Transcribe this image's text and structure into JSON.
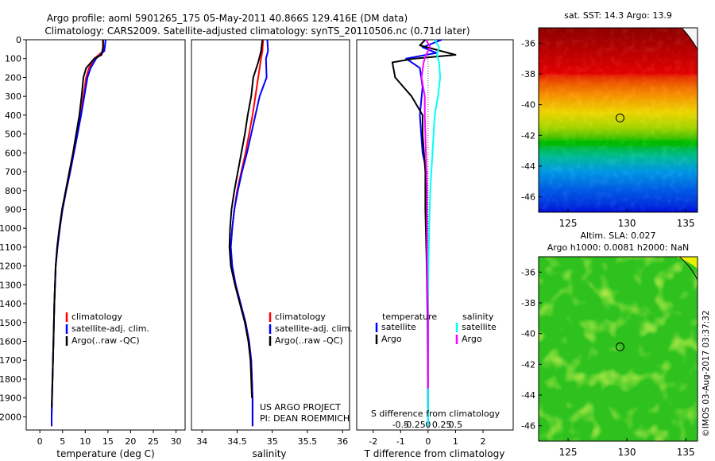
{
  "header": {
    "line1": "Argo profile: aoml 5901265_175 05-May-2011 40.866S 129.416E (DM data)",
    "line2": "Climatology: CARS2009. Satellite-adjusted climatology: synTS_20110506.nc (0.71d later)"
  },
  "footer": {
    "project": "US ARGO PROJECT",
    "pi": "PI: DEAN ROEMMICH",
    "stamp": "©IMOS 03-Aug-2017 03:37:32"
  },
  "maps": {
    "sst": {
      "title": "sat. SST: 14.3 Argo: 13.9"
    },
    "sla": {
      "title1": "Altim. SLA: 0.027",
      "title2": "Argo h1000: 0.0081 h2000: NaN"
    },
    "profile_marker": {
      "lon": 129.416,
      "lat": -40.866
    }
  },
  "colors": {
    "climatology": "#ff0000",
    "satellite": "#0000ff",
    "argo": "#000000",
    "s_satellite": "#00ffff",
    "s_argo": "#ff00ff",
    "frame": "#000000"
  },
  "chart_data": [
    {
      "type": "line",
      "xlabel": "temperature (deg C)",
      "ylabel": "",
      "xlim": [
        -3,
        32
      ],
      "ylim": [
        2070,
        0
      ],
      "xticks": [
        "0",
        "5",
        "10",
        "15",
        "20",
        "25",
        "30"
      ],
      "xtick_values": [
        0,
        5,
        10,
        15,
        20,
        25,
        30
      ],
      "yticks": [
        "0",
        "100",
        "200",
        "300",
        "400",
        "500",
        "600",
        "700",
        "800",
        "900",
        "1000",
        "1100",
        "1200",
        "1300",
        "1400",
        "1500",
        "1600",
        "1700",
        "1800",
        "1900",
        "2000"
      ],
      "ytick_values": [
        0,
        100,
        200,
        300,
        400,
        500,
        600,
        700,
        800,
        900,
        1000,
        1100,
        1200,
        1300,
        1400,
        1500,
        1600,
        1700,
        1800,
        1900,
        2000
      ],
      "legend": [
        "climatology",
        "satellite-adj. clim.",
        "Argo(..raw -QC)"
      ],
      "series": [
        {
          "name": "climatology",
          "color": "#ff0000",
          "points": [
            [
              14.0,
              0
            ],
            [
              14.0,
              60
            ],
            [
              12.0,
              100
            ],
            [
              10.8,
              150
            ],
            [
              10.2,
              200
            ],
            [
              9.6,
              300
            ],
            [
              9.0,
              400
            ],
            [
              8.3,
              500
            ],
            [
              7.5,
              600
            ],
            [
              6.7,
              700
            ],
            [
              5.8,
              800
            ],
            [
              5.0,
              900
            ],
            [
              4.4,
              1000
            ],
            [
              3.9,
              1100
            ],
            [
              3.5,
              1200
            ],
            [
              3.2,
              1400
            ],
            [
              3.0,
              1600
            ],
            [
              2.8,
              1800
            ],
            [
              2.6,
              2000
            ],
            [
              2.6,
              2050
            ]
          ]
        },
        {
          "name": "satellite-adj. clim.",
          "color": "#0000ff",
          "points": [
            [
              14.5,
              0
            ],
            [
              14.2,
              60
            ],
            [
              12.4,
              100
            ],
            [
              11.2,
              150
            ],
            [
              10.5,
              200
            ],
            [
              9.8,
              300
            ],
            [
              9.1,
              400
            ],
            [
              8.3,
              500
            ],
            [
              7.5,
              600
            ],
            [
              6.7,
              700
            ],
            [
              5.8,
              800
            ],
            [
              5.0,
              900
            ],
            [
              4.4,
              1000
            ],
            [
              3.9,
              1100
            ],
            [
              3.5,
              1200
            ],
            [
              3.2,
              1400
            ],
            [
              3.0,
              1600
            ],
            [
              2.8,
              1800
            ],
            [
              2.6,
              2000
            ],
            [
              2.6,
              2050
            ]
          ]
        },
        {
          "name": "Argo(..raw -QC)",
          "color": "#000000",
          "points": [
            [
              13.9,
              0
            ],
            [
              13.9,
              40
            ],
            [
              13.6,
              80
            ],
            [
              12.0,
              100
            ],
            [
              10.2,
              150
            ],
            [
              9.6,
              200
            ],
            [
              9.2,
              300
            ],
            [
              8.7,
              400
            ],
            [
              8.0,
              500
            ],
            [
              7.3,
              600
            ],
            [
              6.5,
              700
            ],
            [
              5.7,
              800
            ],
            [
              4.9,
              900
            ],
            [
              4.3,
              1000
            ],
            [
              3.8,
              1100
            ],
            [
              3.5,
              1200
            ],
            [
              3.2,
              1400
            ],
            [
              3.0,
              1600
            ],
            [
              2.8,
              1800
            ],
            [
              2.6,
              1950
            ]
          ]
        }
      ]
    },
    {
      "type": "line",
      "xlabel": "salinity",
      "ylabel": "",
      "xlim": [
        33.85,
        36.1
      ],
      "ylim": [
        2070,
        0
      ],
      "xticks": [
        "34",
        "34.5",
        "35",
        "35.5",
        "36"
      ],
      "xtick_values": [
        34,
        34.5,
        35,
        35.5,
        36
      ],
      "legend": [
        "climatology",
        "satellite-adj. clim.",
        "Argo(..raw -QC)"
      ],
      "series": [
        {
          "name": "climatology",
          "color": "#ff0000",
          "points": [
            [
              34.87,
              0
            ],
            [
              34.86,
              60
            ],
            [
              34.84,
              100
            ],
            [
              34.8,
              200
            ],
            [
              34.76,
              300
            ],
            [
              34.72,
              400
            ],
            [
              34.67,
              500
            ],
            [
              34.62,
              600
            ],
            [
              34.56,
              700
            ],
            [
              34.5,
              800
            ],
            [
              34.46,
              900
            ],
            [
              34.43,
              1000
            ],
            [
              34.41,
              1100
            ],
            [
              34.43,
              1200
            ],
            [
              34.48,
              1300
            ],
            [
              34.55,
              1400
            ],
            [
              34.62,
              1500
            ],
            [
              34.67,
              1600
            ],
            [
              34.7,
              1700
            ],
            [
              34.71,
              1800
            ],
            [
              34.72,
              1900
            ],
            [
              34.72,
              2050
            ]
          ]
        },
        {
          "name": "satellite-adj. clim.",
          "color": "#0000ff",
          "points": [
            [
              34.93,
              0
            ],
            [
              34.94,
              60
            ],
            [
              34.91,
              100
            ],
            [
              34.92,
              200
            ],
            [
              34.82,
              300
            ],
            [
              34.76,
              400
            ],
            [
              34.7,
              500
            ],
            [
              34.64,
              600
            ],
            [
              34.57,
              700
            ],
            [
              34.51,
              800
            ],
            [
              34.46,
              900
            ],
            [
              34.43,
              1000
            ],
            [
              34.41,
              1100
            ],
            [
              34.43,
              1200
            ],
            [
              34.48,
              1300
            ],
            [
              34.55,
              1400
            ],
            [
              34.62,
              1500
            ],
            [
              34.67,
              1600
            ],
            [
              34.7,
              1700
            ],
            [
              34.71,
              1800
            ],
            [
              34.72,
              1900
            ],
            [
              34.72,
              2050
            ]
          ]
        },
        {
          "name": "Argo(..raw -QC)",
          "color": "#000000",
          "points": [
            [
              34.86,
              0
            ],
            [
              34.84,
              60
            ],
            [
              34.8,
              120
            ],
            [
              34.73,
              200
            ],
            [
              34.7,
              300
            ],
            [
              34.65,
              400
            ],
            [
              34.61,
              500
            ],
            [
              34.56,
              600
            ],
            [
              34.51,
              700
            ],
            [
              34.46,
              800
            ],
            [
              34.42,
              900
            ],
            [
              34.4,
              1000
            ],
            [
              34.39,
              1100
            ],
            [
              34.41,
              1200
            ],
            [
              34.47,
              1300
            ],
            [
              34.54,
              1400
            ],
            [
              34.61,
              1500
            ],
            [
              34.66,
              1600
            ],
            [
              34.69,
              1700
            ],
            [
              34.7,
              1800
            ],
            [
              34.71,
              1900
            ]
          ]
        }
      ]
    },
    {
      "type": "line",
      "xlabel": "T difference from climatology",
      "ylabel": "",
      "secondary_xlabel": "S difference from climatology",
      "xlim": [
        -2.6,
        3.1
      ],
      "ylim": [
        2070,
        0
      ],
      "xticks": [
        "-2",
        "-1",
        "0",
        "1",
        "2"
      ],
      "xtick_values": [
        -2,
        -1,
        0,
        1,
        2
      ],
      "s_xticks": [
        "-0.5",
        "-0.25",
        "0",
        "0.25",
        "0.5"
      ],
      "s_xtick_values": [
        -0.5,
        -0.25,
        0,
        0.25,
        0.5
      ],
      "legend_headers": [
        "temperature",
        "salinity"
      ],
      "legend": [
        "satellite",
        "Argo",
        "satellite",
        "Argo"
      ],
      "series": [
        {
          "name": "satellite",
          "group": "temperature",
          "color": "#0000ff",
          "points": [
            [
              0.5,
              0
            ],
            [
              -0.2,
              40
            ],
            [
              0.3,
              70
            ],
            [
              -0.8,
              100
            ],
            [
              -0.3,
              150
            ],
            [
              -0.2,
              250
            ],
            [
              -0.3,
              400
            ],
            [
              -0.2,
              600
            ],
            [
              -0.05,
              700
            ],
            [
              -0.05,
              900
            ],
            [
              -0.05,
              1200
            ],
            [
              -0.02,
              1500
            ],
            [
              0,
              2050
            ]
          ]
        },
        {
          "name": "Argo",
          "group": "temperature",
          "color": "#000000",
          "points": [
            [
              -0.1,
              0
            ],
            [
              -0.3,
              30
            ],
            [
              1.0,
              80
            ],
            [
              -0.5,
              100
            ],
            [
              -1.3,
              120
            ],
            [
              -1.2,
              200
            ],
            [
              -0.6,
              300
            ],
            [
              -0.2,
              400
            ],
            [
              -0.2,
              500
            ],
            [
              -0.1,
              700
            ],
            [
              -0.1,
              900
            ],
            [
              -0.05,
              1200
            ],
            [
              0,
              1500
            ],
            [
              0,
              1950
            ]
          ]
        },
        {
          "name": "satellite",
          "group": "salinity",
          "color": "#00ffff",
          "points": [
            [
              0.06,
              0
            ],
            [
              0.1,
              40
            ],
            [
              0.08,
              80
            ],
            [
              0.1,
              120
            ],
            [
              0.11,
              200
            ],
            [
              0.09,
              300
            ],
            [
              0.06,
              400
            ],
            [
              0.04,
              600
            ],
            [
              0.02,
              800
            ],
            [
              0.01,
              1000
            ],
            [
              0,
              1300
            ],
            [
              0,
              1600
            ],
            [
              0,
              2050
            ]
          ]
        },
        {
          "name": "Argo",
          "group": "salinity",
          "color": "#ff00ff",
          "points": [
            [
              -0.02,
              0
            ],
            [
              0.02,
              40
            ],
            [
              -0.02,
              80
            ],
            [
              -0.04,
              120
            ],
            [
              -0.06,
              200
            ],
            [
              -0.03,
              300
            ],
            [
              -0.03,
              400
            ],
            [
              -0.02,
              600
            ],
            [
              -0.01,
              800
            ],
            [
              -0.01,
              1000
            ],
            [
              -0.01,
              1200
            ],
            [
              0,
              1500
            ],
            [
              0,
              1850
            ]
          ]
        }
      ]
    },
    {
      "type": "heatmap",
      "title": "sat. SST: 14.3 Argo: 13.9",
      "xlim": [
        122.5,
        136
      ],
      "ylim": [
        -47,
        -35
      ],
      "xticks": [
        "125",
        "130",
        "135"
      ],
      "xtick_values": [
        125,
        130,
        135
      ],
      "yticks": [
        "-36",
        "-38",
        "-40",
        "-42",
        "-44",
        "-46"
      ],
      "ytick_values": [
        -36,
        -38,
        -40,
        -42,
        -44,
        -46
      ]
    },
    {
      "type": "heatmap",
      "title": "Altim. SLA: 0.027",
      "subtitle": "Argo h1000: 0.0081 h2000: NaN",
      "xlim": [
        122.5,
        136
      ],
      "ylim": [
        -47,
        -35
      ],
      "xticks": [
        "125",
        "130",
        "135"
      ],
      "xtick_values": [
        125,
        130,
        135
      ],
      "yticks": [
        "-36",
        "-38",
        "-40",
        "-42",
        "-44",
        "-46"
      ],
      "ytick_values": [
        -36,
        -38,
        -40,
        -42,
        -44,
        -46
      ]
    }
  ]
}
